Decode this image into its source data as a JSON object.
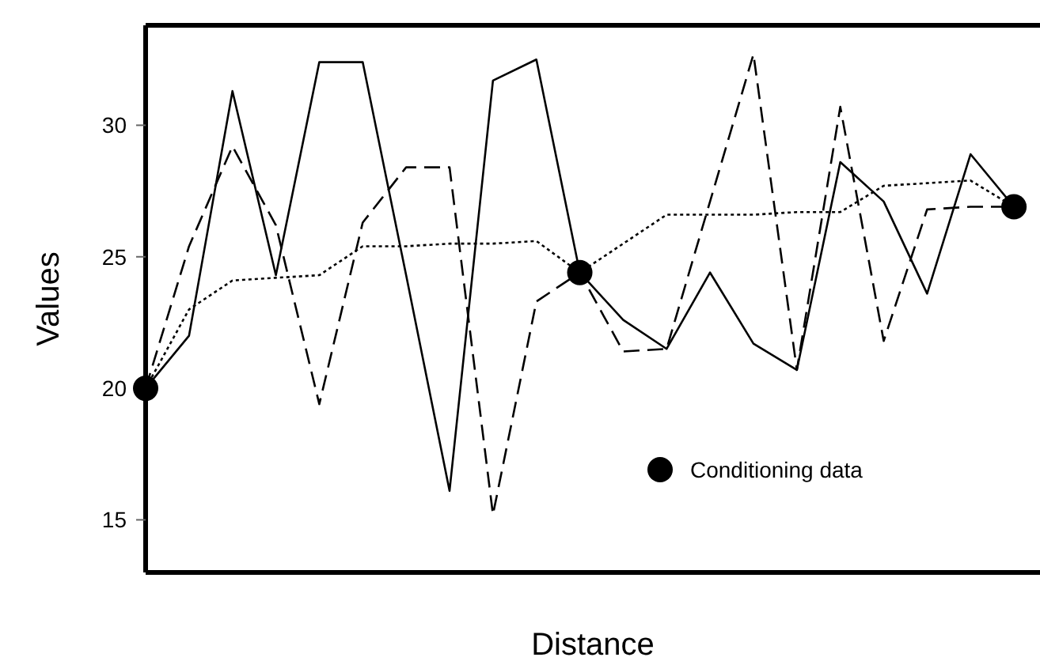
{
  "chart_data": {
    "type": "line",
    "xlabel": "Distance",
    "ylabel": "Values",
    "categories": [
      null,
      null,
      null,
      null,
      null,
      null,
      null,
      null,
      null,
      null,
      null,
      null,
      null,
      null,
      null,
      null,
      null,
      null,
      null,
      null,
      null
    ],
    "ylim": [
      13,
      33.8
    ],
    "yticks": [
      15,
      20,
      25,
      30
    ],
    "tick_labels": "y",
    "grid": false,
    "legend": "bottom right",
    "series": [
      {
        "color": "#000000",
        "line_style": "solid",
        "marker": "none",
        "values": [
          20,
          22.0,
          31.3,
          24.3,
          32.4,
          32.4,
          24.3,
          16.1,
          31.7,
          32.5,
          24.4,
          22.6,
          21.5,
          24.4,
          21.7,
          20.7,
          28.6,
          27.1,
          23.6,
          28.9,
          26.9
        ]
      },
      {
        "color": "#000000",
        "line_style": "dashed",
        "marker": "none",
        "values": [
          20,
          25.4,
          29.2,
          26.2,
          19.4,
          26.3,
          28.4,
          28.4,
          15.2,
          23.3,
          24.4,
          21.4,
          21.5,
          27.1,
          32.7,
          20.7,
          30.7,
          21.8,
          26.8,
          26.9,
          26.9
        ]
      },
      {
        "color": "#000000",
        "line_style": "dotted",
        "marker": "none",
        "values": [
          20,
          23.0,
          24.1,
          24.2,
          24.3,
          25.4,
          25.4,
          25.5,
          25.5,
          25.6,
          24.4,
          25.5,
          26.6,
          26.6,
          26.6,
          26.7,
          26.7,
          27.7,
          27.8,
          27.9,
          26.9
        ]
      },
      {
        "type": "scatter",
        "name": "Conditioning data",
        "color": "#000000",
        "marker": "circle",
        "values": [
          20,
          null,
          null,
          null,
          null,
          null,
          null,
          null,
          null,
          null,
          24.4,
          null,
          null,
          null,
          null,
          null,
          null,
          null,
          null,
          null,
          26.9
        ]
      }
    ]
  }
}
